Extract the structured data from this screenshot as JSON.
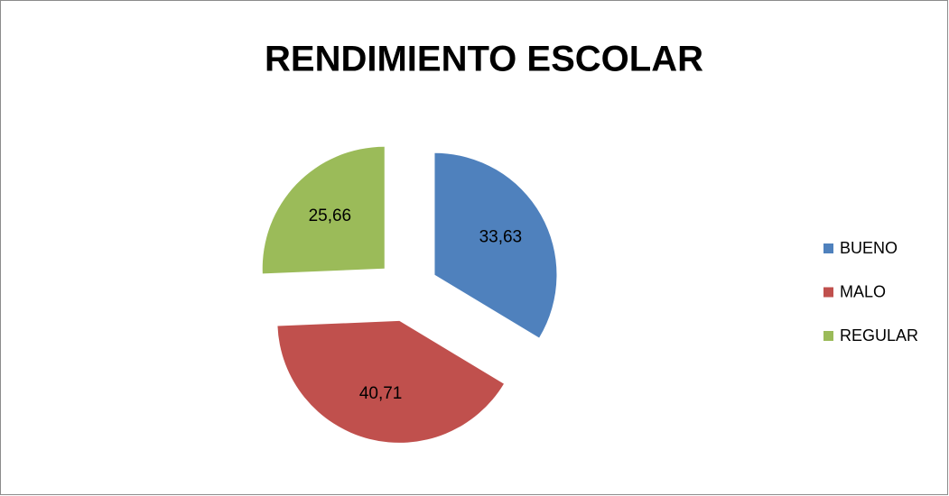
{
  "chart_data": {
    "type": "pie",
    "title": "RENDIMIENTO ESCOLAR",
    "categories": [
      "BUENO",
      "MALO",
      "REGULAR"
    ],
    "values": [
      33.63,
      40.71,
      25.66
    ],
    "value_labels": [
      "33,63",
      "40,71",
      "25,66"
    ],
    "colors": [
      "#4f81bd",
      "#c0504d",
      "#9bbb59"
    ],
    "legend": "right"
  }
}
